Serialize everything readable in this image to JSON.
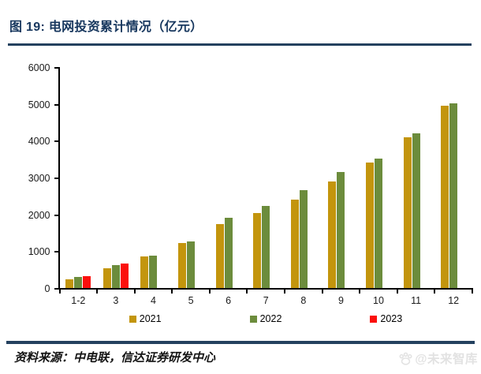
{
  "header": {
    "title": "图 19:  电网投资累计情况（亿元）"
  },
  "footer": {
    "source": "资料来源：中电联，信达证券研发中心",
    "watermark": "@未来智库",
    "watermark_icon": "paw-icon"
  },
  "colors": {
    "accent_navy": "#17375E",
    "divider_navy": "#24415F",
    "axis_black": "#000000",
    "watermark_gray": "#E2E2E2"
  },
  "chart_data": {
    "type": "bar",
    "title": "电网投资累计情况（亿元）",
    "xlabel": "",
    "ylabel": "",
    "grid": false,
    "legend_position": "bottom",
    "ylim": [
      0,
      6000
    ],
    "ytick_step": 1000,
    "yticks": [
      0,
      1000,
      2000,
      3000,
      4000,
      5000,
      6000
    ],
    "categories": [
      "1-2",
      "3",
      "4",
      "5",
      "6",
      "7",
      "8",
      "9",
      "10",
      "11",
      "12"
    ],
    "series": [
      {
        "name": "2021",
        "color": "#C3950D",
        "values": [
          233,
          540,
          851,
          1225,
          1734,
          2029,
          2409,
          2891,
          3408,
          4102,
          4951
        ]
      },
      {
        "name": "2022",
        "color": "#6C8C3C",
        "values": [
          294,
          621,
          889,
          1263,
          1905,
          2239,
          2667,
          3154,
          3511,
          4209,
          5012
        ]
      },
      {
        "name": "2023",
        "color": "#FB0F0C",
        "values": [
          319,
          668,
          null,
          null,
          null,
          null,
          null,
          null,
          null,
          null,
          null
        ]
      }
    ]
  }
}
